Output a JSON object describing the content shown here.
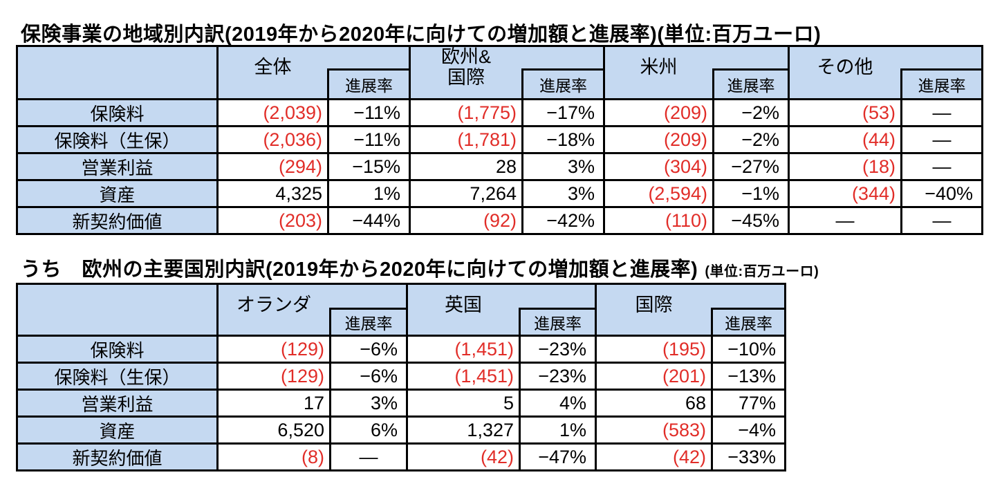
{
  "colors": {
    "header_bg": "#c5d9f1",
    "negative_value": "#e12d28",
    "border": "#000000",
    "text": "#000000"
  },
  "missing_value_dash": "—",
  "table1": {
    "title": "保険事業の地域別内訳(2019年から2020年に向けての増加額と進展率)(単位:百万ユーロ)",
    "pct_header": "進展率",
    "groups": [
      {
        "name": "全体",
        "lines": [
          "全体"
        ]
      },
      {
        "name": "欧州&国際",
        "lines": [
          "欧州&",
          "国際"
        ]
      },
      {
        "name": "米州",
        "lines": [
          "米州"
        ]
      },
      {
        "name": "その他",
        "lines": [
          "その他"
        ]
      }
    ],
    "rows": [
      {
        "label": "保険料",
        "cells": [
          "(2,039)",
          "−11%",
          "(1,775)",
          "−17%",
          "(209)",
          "−2%",
          "(53)",
          "—"
        ]
      },
      {
        "label": "保険料（生保）",
        "cells": [
          "(2,036)",
          "−11%",
          "(1,781)",
          "−18%",
          "(209)",
          "−2%",
          "(44)",
          "—"
        ]
      },
      {
        "label": "営業利益",
        "cells": [
          "(294)",
          "−15%",
          "28",
          "3%",
          "(304)",
          "−27%",
          "(18)",
          "—"
        ]
      },
      {
        "label": "資産",
        "cells": [
          "4,325",
          "1%",
          "7,264",
          "3%",
          "(2,594)",
          "−1%",
          "(344)",
          "−40%"
        ]
      },
      {
        "label": "新契約価値",
        "cells": [
          "(203)",
          "−44%",
          "(92)",
          "−42%",
          "(110)",
          "−45%",
          "—",
          "—"
        ]
      }
    ]
  },
  "table2": {
    "title_main": "うち　欧州の主要国別内訳(2019年から2020年に向けての増加額と進展率)",
    "title_unit": "(単位:百万ユーロ)",
    "pct_header": "進展率",
    "groups": [
      {
        "name": "オランダ",
        "lines": [
          "オランダ"
        ]
      },
      {
        "name": "英国",
        "lines": [
          "英国"
        ]
      },
      {
        "name": "国際",
        "lines": [
          "国際"
        ]
      }
    ],
    "rows": [
      {
        "label": "保険料",
        "cells": [
          "(129)",
          "−6%",
          "(1,451)",
          "−23%",
          "(195)",
          "−10%"
        ]
      },
      {
        "label": "保険料（生保）",
        "cells": [
          "(129)",
          "−6%",
          "(1,451)",
          "−23%",
          "(201)",
          "−13%"
        ]
      },
      {
        "label": "営業利益",
        "cells": [
          "17",
          "3%",
          "5",
          "4%",
          "68",
          "77%"
        ]
      },
      {
        "label": "資産",
        "cells": [
          "6,520",
          "6%",
          "1,327",
          "1%",
          "(583)",
          "−4%"
        ]
      },
      {
        "label": "新契約価値",
        "cells": [
          "(8)",
          "—",
          "(42)",
          "−47%",
          "(42)",
          "−33%"
        ]
      }
    ]
  }
}
